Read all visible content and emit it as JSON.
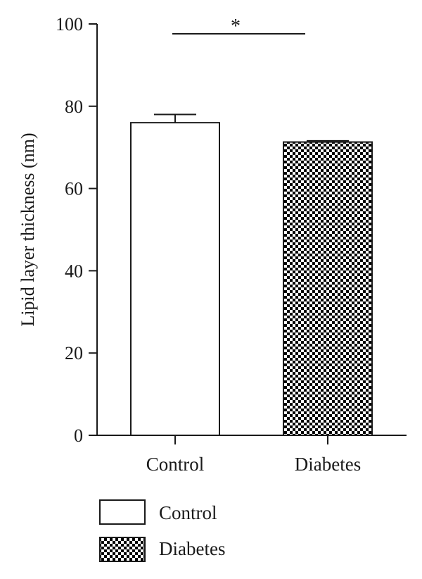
{
  "chart_data": {
    "type": "bar",
    "title": "",
    "xlabel": "",
    "ylabel": "Lipid layer thickness (nm)",
    "ylim": [
      0,
      100
    ],
    "yticks": [
      0,
      20,
      40,
      60,
      80,
      100
    ],
    "categories": [
      "Control",
      "Diabetes"
    ],
    "series": [
      {
        "name": "Control",
        "values": [
          76,
          null
        ],
        "error": [
          2,
          null
        ],
        "pattern": "none",
        "fill": "#ffffff"
      },
      {
        "name": "Diabetes",
        "values": [
          null,
          71.3
        ],
        "error": [
          null,
          0.3
        ],
        "pattern": "checkerboard",
        "fill": "#000000"
      }
    ],
    "significance": {
      "between": [
        "Control",
        "Diabetes"
      ],
      "label": "*"
    },
    "legend": {
      "position": "bottom-left",
      "entries": [
        "Control",
        "Diabetes"
      ]
    },
    "grid": false,
    "colors": {
      "axis": "#1a1a1a",
      "bar_stroke": "#1a1a1a",
      "checker_dark": "#000000",
      "checker_light": "#ffffff"
    }
  }
}
